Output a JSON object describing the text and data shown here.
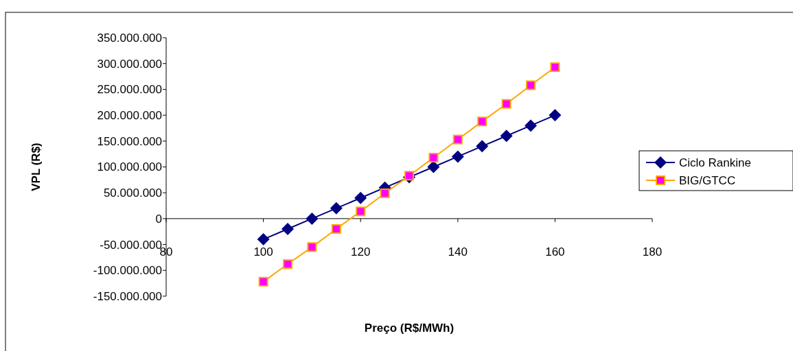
{
  "chart_data": {
    "type": "line",
    "xlabel": "Preço (R$/MWh)",
    "ylabel": "VPL (R$)",
    "x": [
      100,
      105,
      110,
      115,
      120,
      125,
      130,
      135,
      140,
      145,
      150,
      155,
      160
    ],
    "series": [
      {
        "name": "Ciclo Rankine",
        "color": "#000080",
        "marker": "diamond",
        "values": [
          -40000000,
          -20000000,
          0,
          20000000,
          40000000,
          60000000,
          80000000,
          100000000,
          120000000,
          140000000,
          160000000,
          180000000,
          200000000
        ]
      },
      {
        "name": "BIG/GTCC",
        "color": "#ffa500",
        "marker": "square",
        "values": [
          -122000000,
          -88000000,
          -55000000,
          -20000000,
          14000000,
          49000000,
          83000000,
          118000000,
          153000000,
          188000000,
          222000000,
          258000000,
          293000000
        ]
      }
    ],
    "xlim": [
      80,
      180
    ],
    "xticks": [
      80,
      100,
      120,
      140,
      160,
      180
    ],
    "ylim": [
      -150000000,
      350000000
    ],
    "yticks": [
      {
        "value": -150000000,
        "label": "-150.000.000"
      },
      {
        "value": -100000000,
        "label": "-100.000.000"
      },
      {
        "value": -50000000,
        "label": "-50.000.000"
      },
      {
        "value": 0,
        "label": "0"
      },
      {
        "value": 50000000,
        "label": "50.000.000"
      },
      {
        "value": 100000000,
        "label": "100.000.000"
      },
      {
        "value": 150000000,
        "label": "150.000.000"
      },
      {
        "value": 200000000,
        "label": "200.000.000"
      },
      {
        "value": 250000000,
        "label": "250.000.000"
      },
      {
        "value": 300000000,
        "label": "300.000.000"
      },
      {
        "value": 350000000,
        "label": "350.000.000"
      }
    ],
    "grid": false,
    "legend": "right"
  }
}
